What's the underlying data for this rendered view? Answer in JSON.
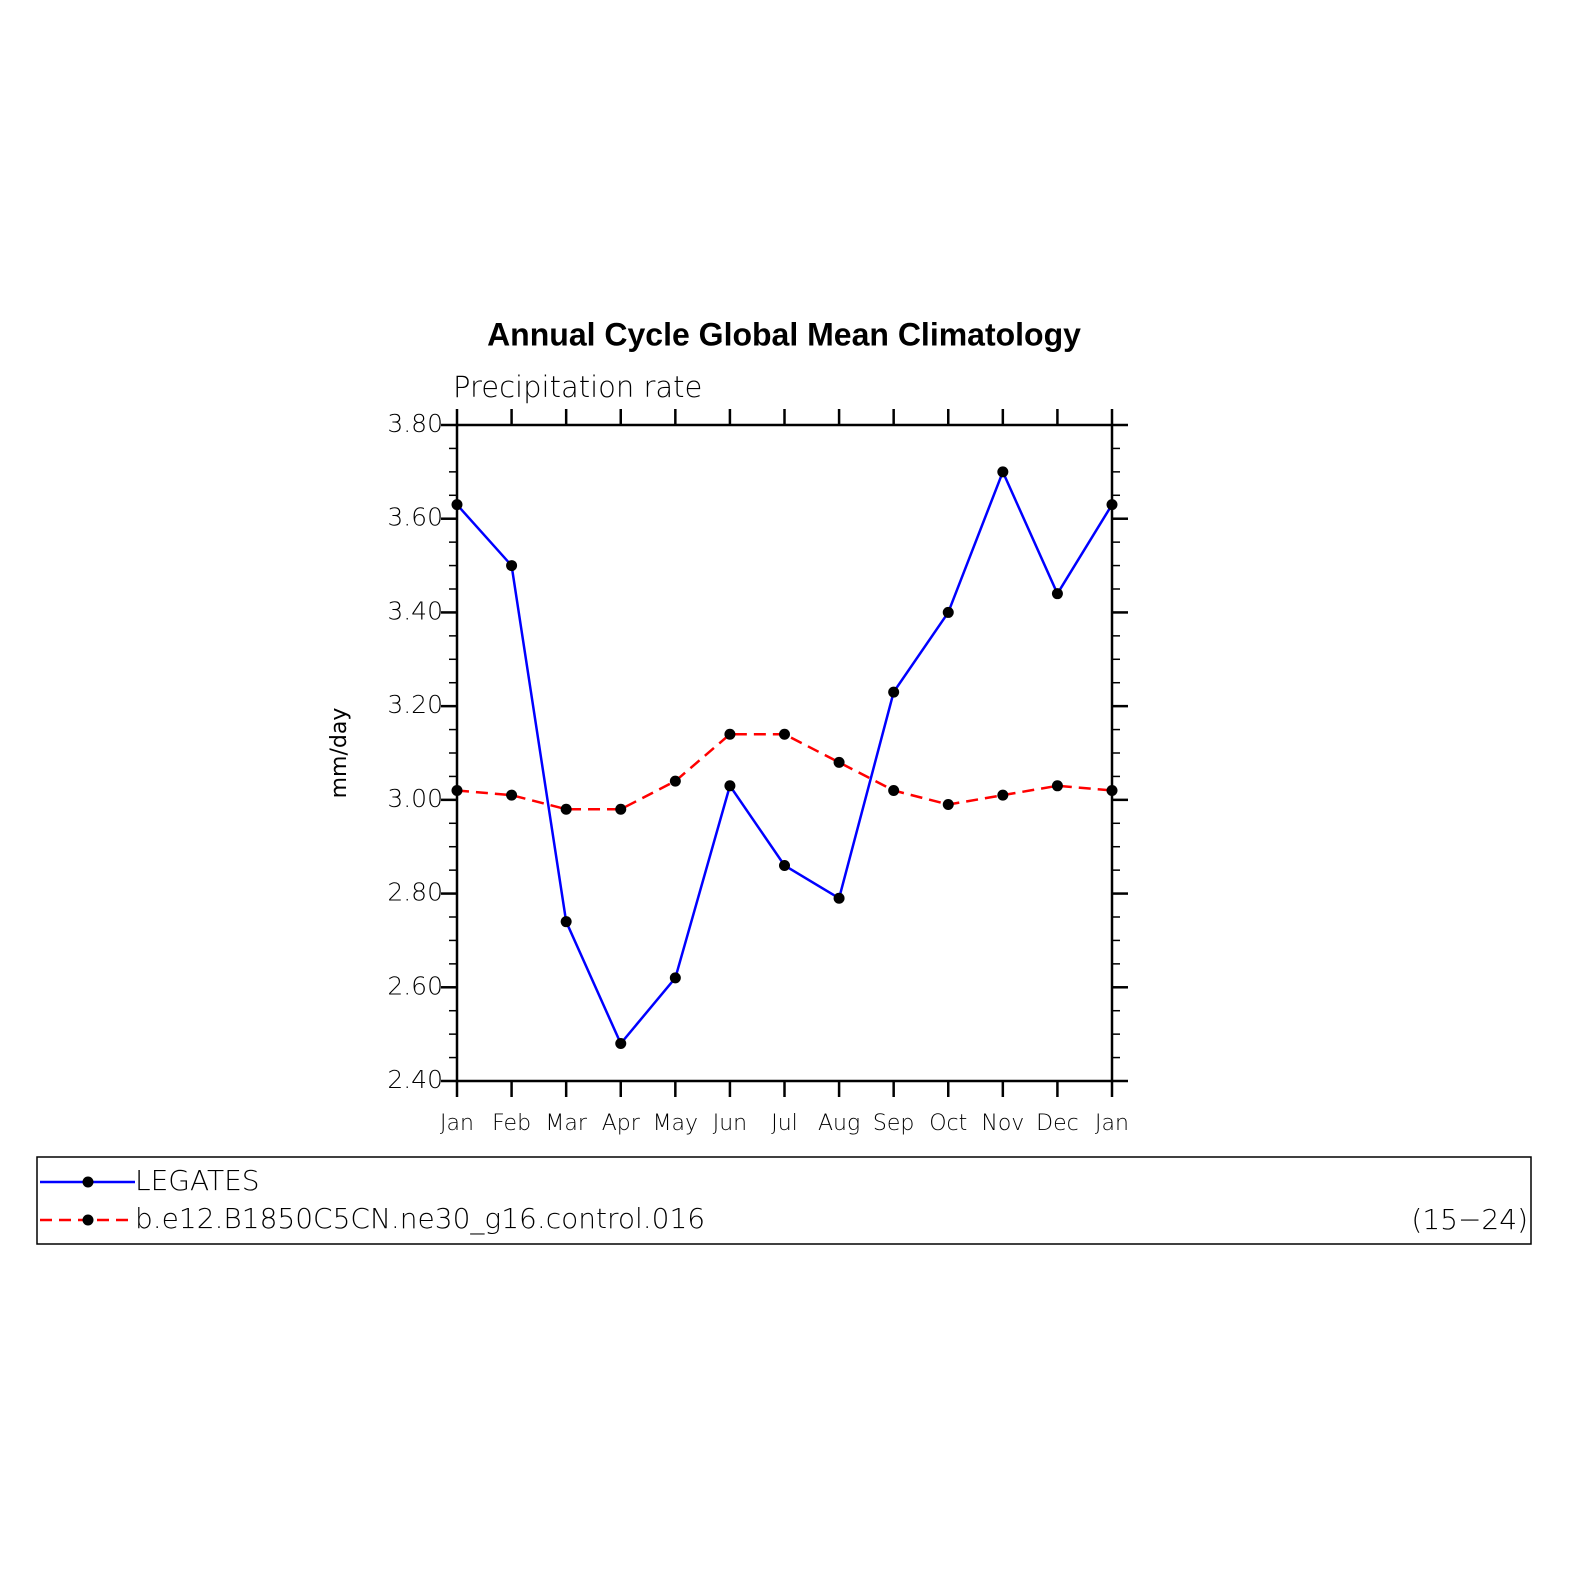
{
  "chart_data": {
    "type": "line",
    "title": "Annual Cycle Global Mean Climatology",
    "subtitle": "Precipitation rate",
    "y_label": "mm/day",
    "categories": [
      "Jan",
      "Feb",
      "Mar",
      "Apr",
      "May",
      "Jun",
      "Jul",
      "Aug",
      "Sep",
      "Oct",
      "Nov",
      "Dec",
      "Jan"
    ],
    "series": [
      {
        "name": "LEGATES",
        "color": "#0000ff",
        "dash": false,
        "values": [
          3.63,
          3.5,
          2.74,
          2.48,
          2.62,
          3.03,
          2.86,
          2.79,
          3.23,
          3.4,
          3.7,
          3.44,
          3.63
        ]
      },
      {
        "name": "b.e12.B1850C5CN.ne30_g16.control.016",
        "color": "#ff0000",
        "dash": true,
        "values": [
          3.02,
          3.01,
          2.98,
          2.98,
          3.04,
          3.14,
          3.14,
          3.08,
          3.02,
          2.99,
          3.01,
          3.03,
          3.02
        ]
      }
    ],
    "legend_note": "(15−24)",
    "marker_color": "#000000",
    "ylim": [
      2.4,
      3.8
    ],
    "yticks": [
      {
        "value": 2.4,
        "label": "2.40"
      },
      {
        "value": 2.6,
        "label": "2.60"
      },
      {
        "value": 2.8,
        "label": "2.80"
      },
      {
        "value": 3.0,
        "label": "3.00"
      },
      {
        "value": 3.2,
        "label": "3.20"
      },
      {
        "value": 3.4,
        "label": "3.40"
      },
      {
        "value": 3.6,
        "label": "3.60"
      },
      {
        "value": 3.8,
        "label": "3.80"
      }
    ],
    "grid": false
  }
}
